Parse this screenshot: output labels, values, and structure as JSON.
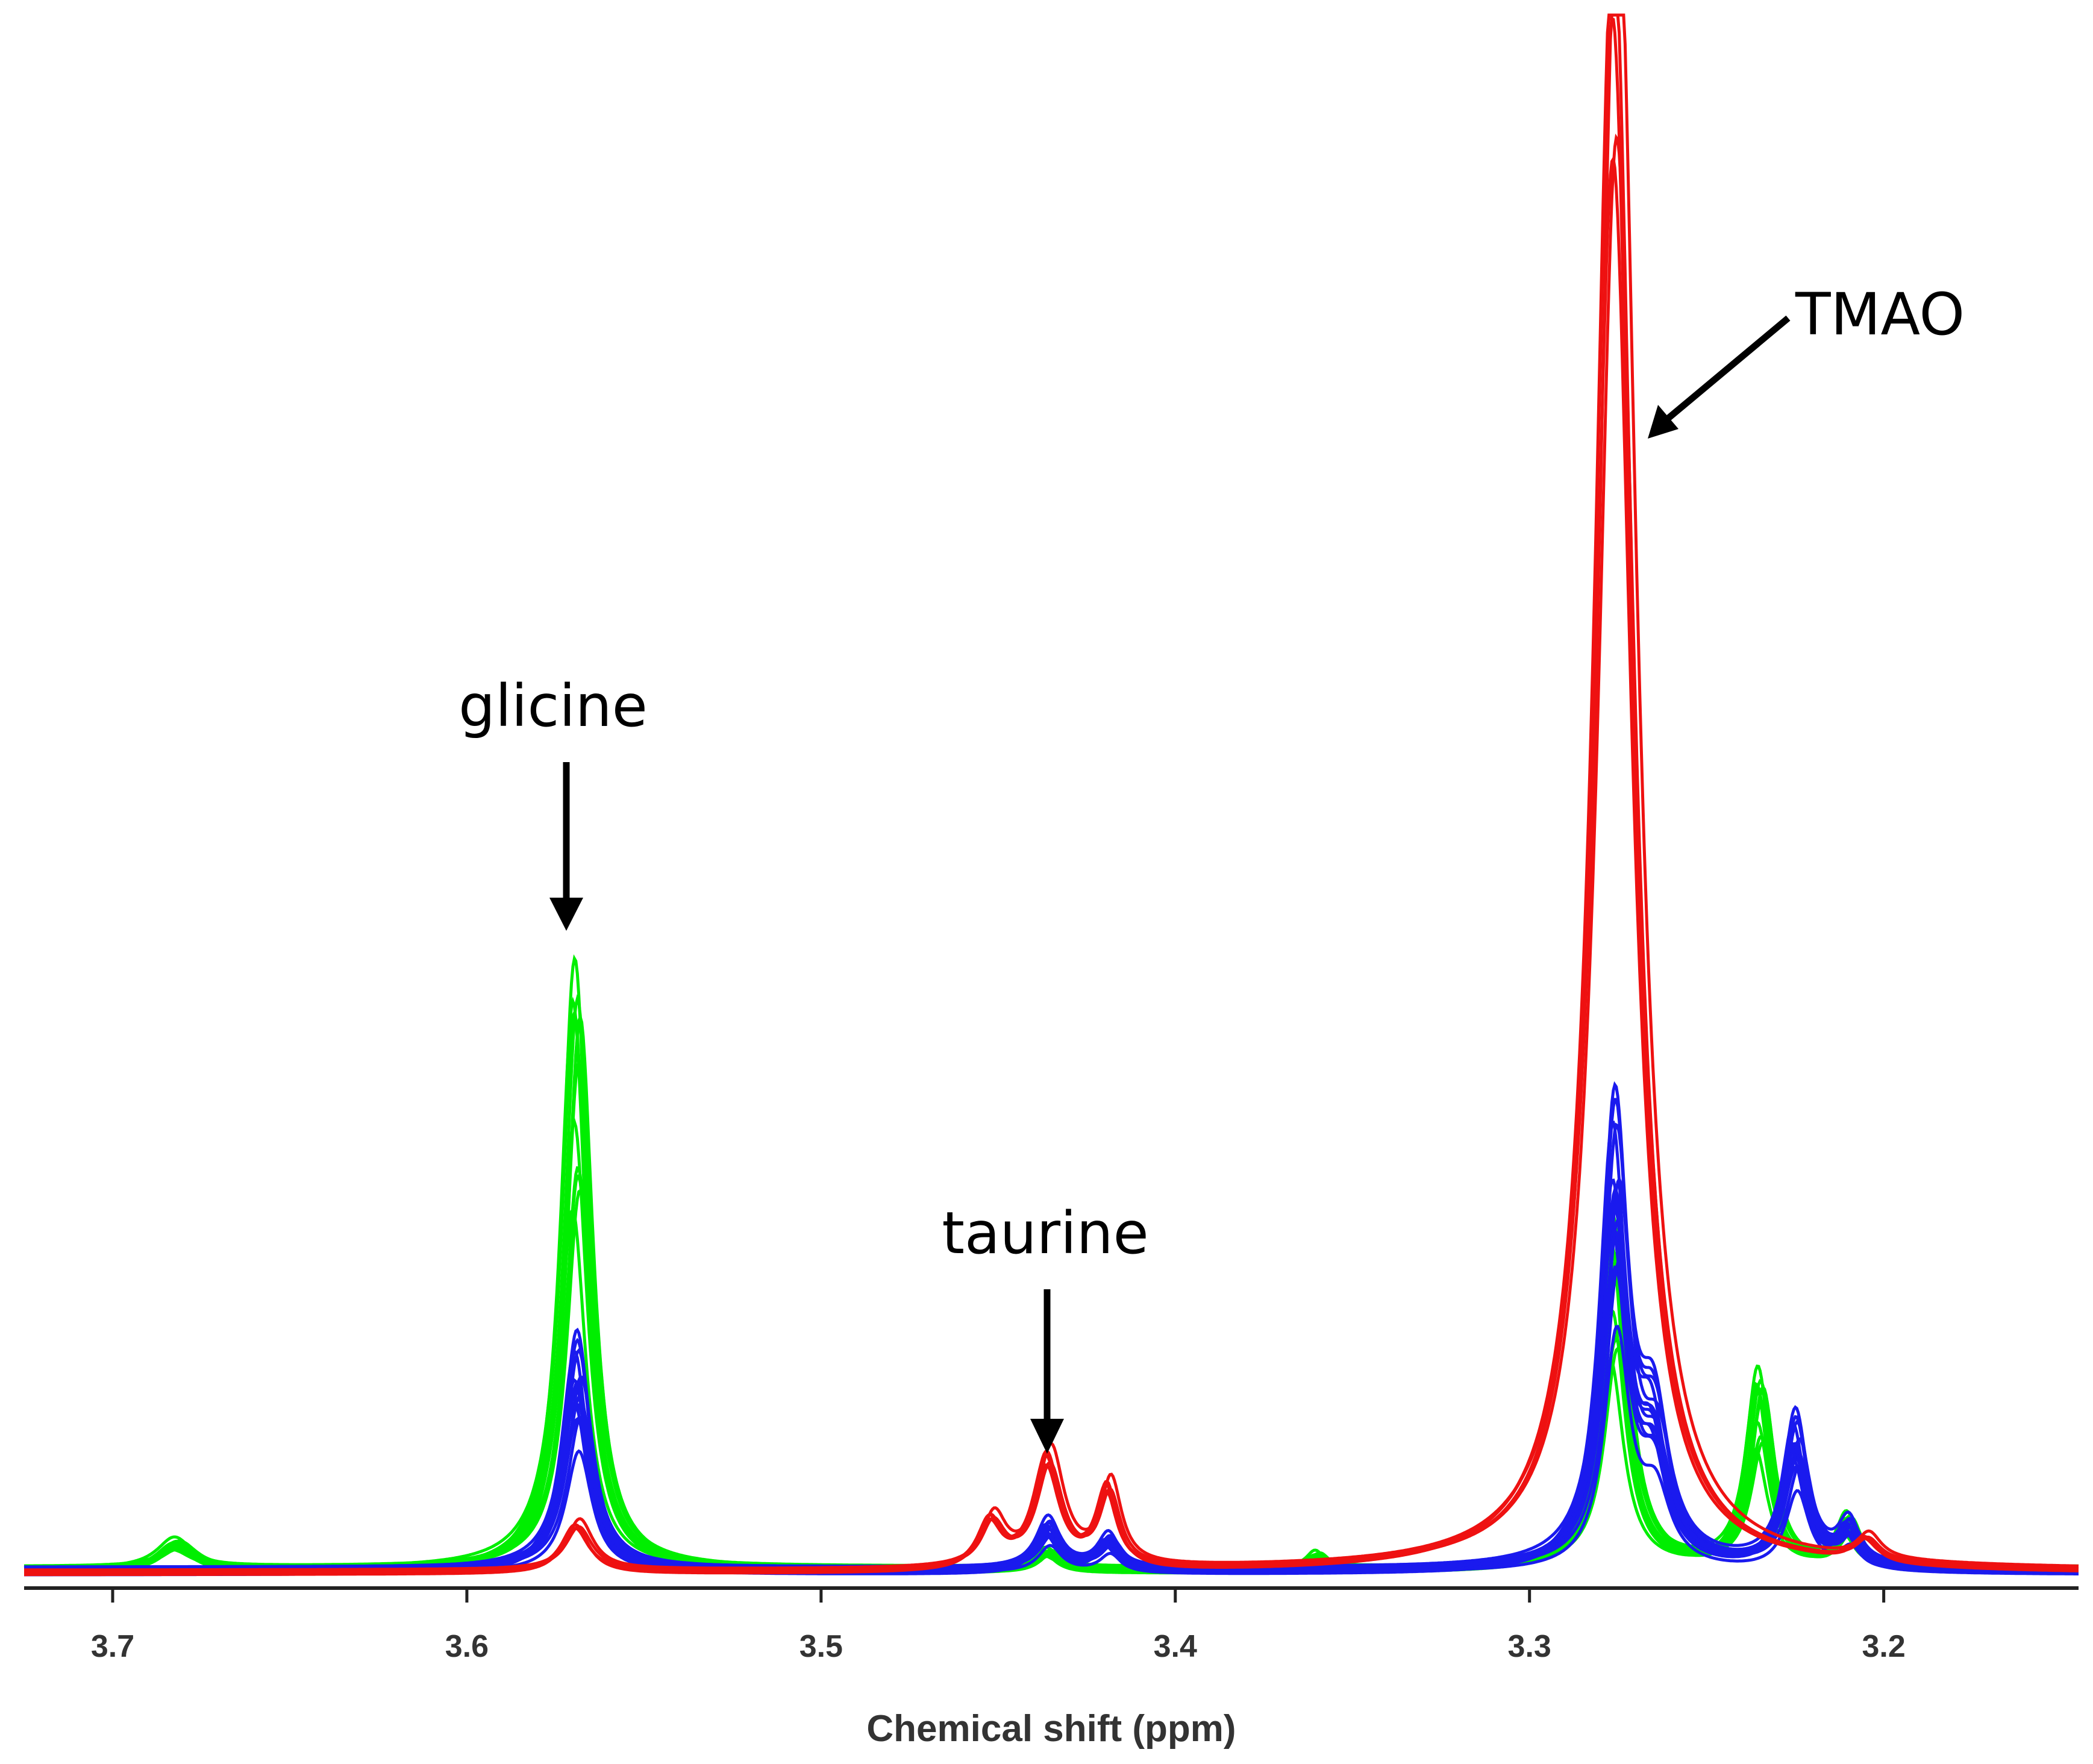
{
  "chart_data": {
    "type": "line",
    "title": "",
    "xlabel": "Chemical shift (ppm)",
    "ylabel": "",
    "xlim": [
      3.725,
      3.145
    ],
    "x_reversed": true,
    "ylim": [
      0,
      1.0
    ],
    "grid": false,
    "legend": "none",
    "x_ticks": [
      {
        "value": 3.7,
        "label": "3.7"
      },
      {
        "value": 3.6,
        "label": "3.6"
      },
      {
        "value": 3.5,
        "label": "3.5"
      },
      {
        "value": 3.4,
        "label": "3.4"
      },
      {
        "value": 3.3,
        "label": "3.3"
      },
      {
        "value": 3.2,
        "label": "3.2"
      }
    ],
    "colors": {
      "green": "#00ee00",
      "blue": "#1a1aee",
      "red": "#ee1111"
    },
    "series": [
      {
        "name": "green",
        "color": "#00ee00",
        "count": 12,
        "peaks": [
          {
            "center": 3.569,
            "height": 0.355,
            "width": 0.0045
          },
          {
            "center": 3.276,
            "height": 0.205,
            "width": 0.0045
          },
          {
            "center": 3.235,
            "height": 0.115,
            "width": 0.004
          },
          {
            "center": 3.21,
            "height": 0.03,
            "width": 0.0035
          },
          {
            "center": 3.436,
            "height": 0.012,
            "width": 0.004
          },
          {
            "center": 3.682,
            "height": 0.018,
            "width": 0.006
          },
          {
            "center": 3.36,
            "height": 0.01,
            "width": 0.003
          }
        ]
      },
      {
        "name": "blue",
        "color": "#1a1aee",
        "count": 14,
        "peaks": [
          {
            "center": 3.569,
            "height": 0.14,
            "width": 0.0045
          },
          {
            "center": 3.276,
            "height": 0.27,
            "width": 0.0045
          },
          {
            "center": 3.225,
            "height": 0.09,
            "width": 0.004
          },
          {
            "center": 3.21,
            "height": 0.025,
            "width": 0.0035
          },
          {
            "center": 3.436,
            "height": 0.03,
            "width": 0.004
          },
          {
            "center": 3.419,
            "height": 0.02,
            "width": 0.0035
          },
          {
            "center": 3.265,
            "height": 0.08,
            "width": 0.005
          }
        ]
      },
      {
        "name": "red",
        "color": "#ee1111",
        "count": 5,
        "peaks": [
          {
            "center": 3.569,
            "height": 0.03,
            "width": 0.0045
          },
          {
            "center": 3.276,
            "height": 1.0,
            "width": 0.0065
          },
          {
            "center": 3.436,
            "height": 0.07,
            "width": 0.0045
          },
          {
            "center": 3.419,
            "height": 0.05,
            "width": 0.0035
          },
          {
            "center": 3.452,
            "height": 0.03,
            "width": 0.004
          },
          {
            "center": 3.205,
            "height": 0.015,
            "width": 0.004
          }
        ]
      }
    ],
    "annotations": [
      {
        "text": "glicine",
        "x": 3.569
      },
      {
        "text": "taurine",
        "x": 3.436
      },
      {
        "text": "TMAO",
        "x": 3.276
      }
    ]
  }
}
